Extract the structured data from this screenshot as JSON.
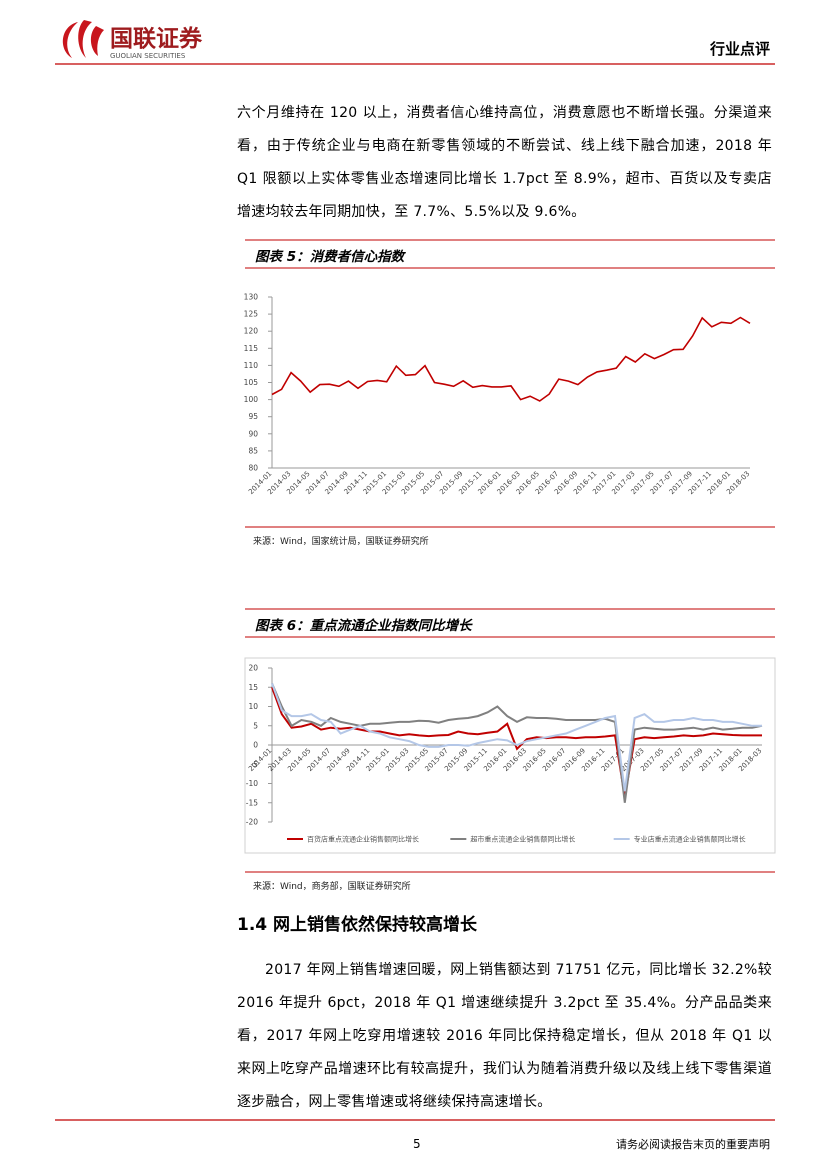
{
  "header": {
    "logo_text": "国联证券",
    "logo_subtext": "GUOLIAN SECURITIES",
    "section": "行业点评"
  },
  "paragraphs": [
    "六个月维持在 120 以上，消费者信心维持高位，消费意愿也不断增长强。分渠道来看，由于传统企业与电商在新零售领域的不断尝试、线上线下融合加速，2018 年 Q1 限额以上实体零售业态增速同比增长 1.7pct 至 8.9%，超市、百货以及专卖店增速均较去年同期加快，至 7.7%、5.5%以及 9.6%。",
    "2017 年网上销售增速回暖，网上销售额达到 71751 亿元，同比增长 32.2%较 2016 年提升 6pct，2018 年 Q1 增速继续提升 3.2pct 至 35.4%。分产品品类来看，2017 年网上吃穿用增速较 2016 年同比保持稳定增长，但从 2018 年 Q1 以来网上吃穿产品增速环比有较高提升，我们认为随着消费升级以及线上线下零售渠道逐步融合，网上零售增速或将继续保持高速增长。"
  ],
  "section_heading": "1.4 网上销售依然保持较高增长",
  "footer": {
    "page": "5",
    "notice": "请务必阅读报告末页的重要声明"
  },
  "chart_data": [
    {
      "type": "line",
      "title": "图表 5：消费者信心指数",
      "source": "来源：Wind，国家统计局，国联证券研究所",
      "categories": [
        "2014-01",
        null,
        "2014-03",
        null,
        "2014-05",
        null,
        "2014-07",
        null,
        "2014-09",
        null,
        "2014-11",
        null,
        "2015-01",
        null,
        "2015-03",
        null,
        "2015-05",
        null,
        "2015-07",
        null,
        "2015-09",
        null,
        "2015-11",
        null,
        "2016-01",
        null,
        "2016-03",
        null,
        "2016-05",
        null,
        "2016-07",
        null,
        "2016-09",
        null,
        "2016-11",
        null,
        "2017-01",
        null,
        "2017-03",
        null,
        "2017-05",
        null,
        "2017-07",
        null,
        "2017-09",
        null,
        "2017-11",
        null,
        "2018-01",
        null,
        "2018-03"
      ],
      "values": [
        101.5,
        103,
        107.9,
        105.4,
        102.2,
        104.4,
        104.5,
        103.9,
        105.4,
        103.3,
        105.3,
        105.6,
        105.2,
        109.8,
        107.1,
        107.3,
        109.9,
        105,
        104.5,
        103.9,
        105.5,
        103.6,
        104.1,
        103.7,
        103.7,
        104,
        100,
        101,
        99.6,
        101.6,
        106,
        105.4,
        104.4,
        106.6,
        108.1,
        108.6,
        109.2,
        112.6,
        111,
        113.4,
        112,
        113.2,
        114.6,
        114.7,
        118.6,
        123.9,
        121.3,
        122.6,
        122.3,
        124,
        122.3
      ],
      "color": "#c00000",
      "ylim": [
        80,
        130
      ],
      "yticks": [
        80,
        85,
        90,
        95,
        100,
        105,
        110,
        115,
        120,
        125,
        130
      ],
      "grid": false
    },
    {
      "type": "line",
      "title": "图表 6：重点流通企业指数同比增长",
      "source": "来源：Wind，商务部，国联证券研究所",
      "categories": [
        "2014-01",
        null,
        "2014-03",
        null,
        "2014-05",
        null,
        "2014-07",
        null,
        "2014-09",
        null,
        "2014-11",
        null,
        "2015-01",
        null,
        "2015-03",
        null,
        "2015-05",
        null,
        "2015-07",
        null,
        "2015-09",
        null,
        "2015-11",
        null,
        "2016-01",
        null,
        "2016-03",
        null,
        "2016-05",
        null,
        "2016-07",
        null,
        "2016-09",
        null,
        "2016-11",
        null,
        "2017-01",
        null,
        "2017-03",
        null,
        "2017-05",
        null,
        "2017-07",
        null,
        "2017-09",
        null,
        "2017-11",
        null,
        "2018-01",
        null,
        "2018-03"
      ],
      "series": [
        {
          "name": "百货店重点流通企业销售额同比增长",
          "color": "#c00000",
          "values": [
            15,
            8,
            4.5,
            4.8,
            5.5,
            4,
            4.5,
            4.2,
            4.5,
            4,
            3.5,
            3.5,
            3,
            2.5,
            2.8,
            2.5,
            2.3,
            2.5,
            2.6,
            3.5,
            3,
            2.8,
            3.2,
            3.5,
            5.5,
            -1,
            1.5,
            2,
            1.8,
            2,
            2,
            1.8,
            2,
            2,
            2.2,
            2.5,
            -13.5,
            1.5,
            2,
            1.8,
            2,
            2.2,
            2.5,
            2.3,
            2.5,
            3,
            2.8,
            2.6,
            2.5,
            2.5,
            2.5
          ]
        },
        {
          "name": "超市重点流通企业销售额同比增长",
          "color": "#808080",
          "values": [
            16,
            10,
            5,
            6.5,
            6,
            5,
            7,
            6,
            5.5,
            5,
            5.5,
            5.5,
            5.8,
            6,
            6,
            6.3,
            6.2,
            5.8,
            6.5,
            6.8,
            7,
            7.5,
            8.5,
            10,
            7.5,
            6,
            7.2,
            7,
            7,
            6.8,
            6.5,
            6.5,
            6.5,
            6.5,
            6.8,
            6,
            -15,
            4,
            4.5,
            4.2,
            4,
            4,
            4.2,
            4.5,
            4,
            4.5,
            4,
            4.2,
            4.5,
            4.5,
            5
          ]
        },
        {
          "name": "专业店重点流通企业销售额同比增长",
          "color": "#b4c7e7",
          "values": [
            16,
            9,
            7.5,
            7.5,
            8,
            6.5,
            6,
            3,
            4,
            5,
            3.5,
            3,
            2,
            1.5,
            1,
            0,
            -0.5,
            -0.5,
            0,
            0,
            -0.2,
            0.5,
            1,
            1.5,
            1.2,
            0,
            1,
            1.5,
            2,
            2.5,
            3,
            4,
            5,
            6,
            7,
            7.5,
            -12,
            7,
            8,
            6,
            6,
            6.5,
            6.5,
            7,
            6.5,
            6.5,
            6,
            6,
            5.5,
            5,
            5
          ]
        }
      ],
      "ylim": [
        -20,
        20
      ],
      "yticks": [
        -20,
        -15,
        -10,
        -5,
        0,
        5,
        10,
        15,
        20
      ],
      "grid": false,
      "legend": "bottom"
    }
  ]
}
